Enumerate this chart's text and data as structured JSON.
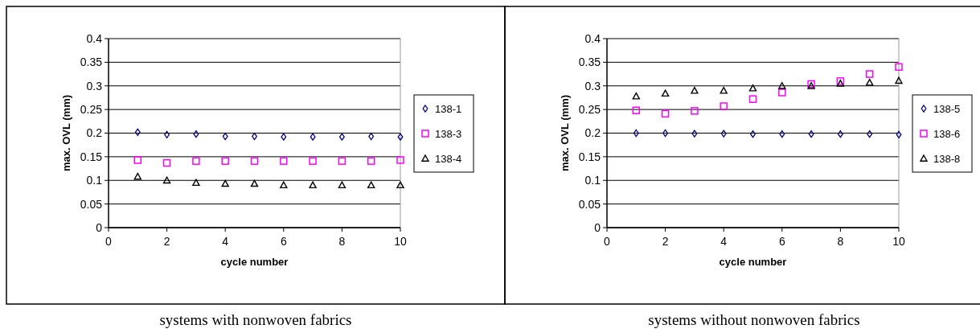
{
  "chart_data": [
    {
      "type": "scatter",
      "xlabel": "cycle number",
      "ylabel": "max. OVL (mm)",
      "annotations": [
        "systems with nonwoven fabrics"
      ],
      "x": [
        1,
        2,
        3,
        4,
        5,
        6,
        7,
        8,
        9,
        10
      ],
      "xlim": [
        0,
        10
      ],
      "xticks": [
        0,
        2,
        4,
        6,
        8,
        10
      ],
      "ylim": [
        0,
        0.4
      ],
      "yticks": [
        0,
        0.05,
        0.1,
        0.15,
        0.2,
        0.25,
        0.3,
        0.35,
        0.4
      ],
      "grid": "y",
      "legend": "right",
      "series": [
        {
          "name": "138-1",
          "color": "#000080",
          "marker": "diamond",
          "values": [
            0.202,
            0.197,
            0.198,
            0.193,
            0.193,
            0.192,
            0.192,
            0.192,
            0.193,
            0.192
          ]
        },
        {
          "name": "138-3",
          "color": "#ff00ff",
          "marker": "square",
          "values": [
            0.143,
            0.137,
            0.141,
            0.141,
            0.141,
            0.141,
            0.141,
            0.141,
            0.141,
            0.143
          ]
        },
        {
          "name": "138-4",
          "color": "#000000",
          "marker": "triangle",
          "values": [
            0.108,
            0.1,
            0.095,
            0.093,
            0.093,
            0.09,
            0.09,
            0.09,
            0.09,
            0.09
          ]
        }
      ]
    },
    {
      "type": "scatter",
      "xlabel": "cycle number",
      "ylabel": "max. OVL (mm)",
      "annotations": [
        "systems without nonwoven fabrics"
      ],
      "x": [
        1,
        2,
        3,
        4,
        5,
        6,
        7,
        8,
        9,
        10
      ],
      "xlim": [
        0,
        10
      ],
      "xticks": [
        0,
        2,
        4,
        6,
        8,
        10
      ],
      "ylim": [
        0,
        0.4
      ],
      "yticks": [
        0,
        0.05,
        0.1,
        0.15,
        0.2,
        0.25,
        0.3,
        0.35,
        0.4
      ],
      "grid": "y",
      "legend": "right",
      "series": [
        {
          "name": "138-5",
          "color": "#000080",
          "marker": "diamond",
          "values": [
            0.2,
            0.2,
            0.199,
            0.199,
            0.198,
            0.198,
            0.198,
            0.198,
            0.198,
            0.197
          ]
        },
        {
          "name": "138-6",
          "color": "#ff00ff",
          "marker": "square",
          "values": [
            0.248,
            0.241,
            0.247,
            0.257,
            0.272,
            0.286,
            0.304,
            0.31,
            0.325,
            0.34
          ]
        },
        {
          "name": "138-8",
          "color": "#000000",
          "marker": "triangle",
          "values": [
            0.278,
            0.284,
            0.29,
            0.29,
            0.295,
            0.3,
            0.3,
            0.305,
            0.307,
            0.311
          ]
        }
      ]
    }
  ]
}
